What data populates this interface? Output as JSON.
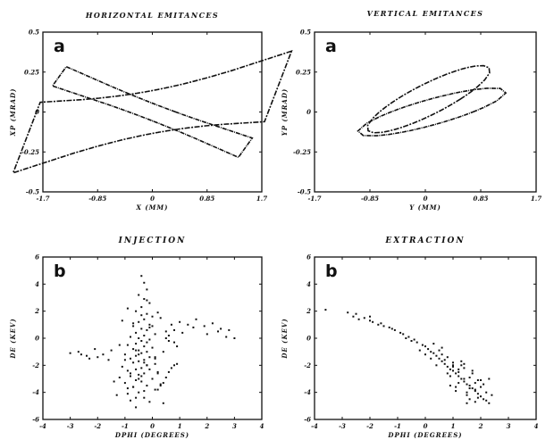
{
  "chart_data": [
    {
      "type": "line",
      "title": "HORIZONTAL EMITANCES",
      "panel_label": "a",
      "xlabel": "X (MM)",
      "ylabel": "XP (MRAD)",
      "xlim": [
        -1.7,
        1.7
      ],
      "ylim": [
        -0.5,
        0.5
      ],
      "xticks": [
        "-1.7",
        "-0.85",
        "0",
        "0.85",
        "1.7"
      ],
      "yticks": [
        "0.5",
        "0.25",
        "0",
        "-0.25",
        "-0.5"
      ],
      "grid": false,
      "series": [
        {
          "kind": "ellipse",
          "center": [
            0.0,
            0.0
          ],
          "points": [
            [
              -1.4,
              -0.28
            ],
            [
              1.4,
              0.28
            ],
            [
              -0.75,
              0.09
            ],
            [
              0.75,
              -0.09
            ],
            [
              0.9,
              0.22
            ],
            [
              -0.9,
              -0.22
            ]
          ]
        },
        {
          "kind": "ellipse",
          "center": [
            0.0,
            0.0
          ],
          "points": [
            [
              -1.0,
              0.09
            ],
            [
              1.0,
              -0.09
            ],
            [
              -0.4,
              0.12
            ],
            [
              0.4,
              -0.12
            ],
            [
              0.5,
              -0.02
            ],
            [
              -0.5,
              0.02
            ]
          ]
        }
      ]
    },
    {
      "type": "line",
      "title": "VERTICAL EMITANCES",
      "panel_label": "a",
      "xlabel": "Y (MM)",
      "ylabel": "YP (MRAD)",
      "xlim": [
        -1.7,
        1.7
      ],
      "ylim": [
        -0.5,
        0.5
      ],
      "xticks": [
        "-1.7",
        "-0.85",
        "0",
        "0.85",
        "1.7"
      ],
      "yticks": [
        "0.5",
        "0.25",
        "0",
        "-0.25",
        "-0.5"
      ],
      "grid": false,
      "series": [
        {
          "kind": "ellipse",
          "center": [
            0.05,
            0.08
          ],
          "points": [
            [
              -0.72,
              -0.13
            ],
            [
              0.82,
              0.29
            ],
            [
              0.95,
              0.22
            ],
            [
              -0.85,
              -0.06
            ],
            [
              0.35,
              0.24
            ],
            [
              -0.25,
              -0.08
            ]
          ]
        },
        {
          "kind": "ellipse",
          "center": [
            0.1,
            0.0
          ],
          "points": [
            [
              -1.0,
              -0.1
            ],
            [
              1.2,
              0.1
            ],
            [
              -0.55,
              -0.14
            ],
            [
              0.75,
              0.14
            ],
            [
              0.85,
              0.02
            ],
            [
              -0.65,
              -0.02
            ]
          ]
        }
      ]
    },
    {
      "type": "scatter",
      "title": "INJECTION",
      "panel_label": "b",
      "xlabel": "DPHI (DEGREES)",
      "ylabel": "DE (KEV)",
      "xlim": [
        -4,
        4
      ],
      "ylim": [
        -6,
        6
      ],
      "xticks": [
        "-4",
        "-3",
        "-2",
        "-1",
        "0",
        "1",
        "2",
        "3",
        "4"
      ],
      "yticks": [
        "6",
        "4",
        "2",
        "0",
        "-2",
        "-4",
        "-6"
      ],
      "grid": false,
      "x": [
        -0.4,
        -0.3,
        -0.2,
        -0.5,
        -0.3,
        -0.1,
        -0.4,
        -0.6,
        -0.2,
        0.0,
        -0.3,
        -0.5,
        -0.1,
        -0.7,
        -0.4,
        -0.2,
        -0.6,
        0.1,
        -0.3,
        -0.8,
        -0.5,
        -0.1,
        -0.4,
        -0.2,
        -0.6,
        -0.9,
        -0.3,
        0.0,
        -0.7,
        -0.5,
        -0.2,
        -0.4,
        -1.0,
        -0.6,
        -0.1,
        -0.8,
        -0.3,
        -0.5,
        -0.7,
        0.1,
        -0.2,
        -1.1,
        -0.4,
        -0.6,
        -0.9,
        0.2,
        -0.3,
        -0.5,
        -0.8,
        -1.2,
        0.0,
        -0.6,
        -0.4,
        -1.0,
        0.3,
        -0.2,
        -0.7,
        -0.9,
        0.1,
        -0.5,
        -1.3,
        -0.3,
        -0.8,
        0.4,
        -0.6,
        -1.1,
        -0.1,
        -0.4,
        0.5,
        -0.9,
        -0.7,
        0.6,
        -0.2,
        -1.2,
        0.2,
        -0.5,
        0.8,
        -0.3,
        0.0,
        -0.8,
        0.3,
        -1.4,
        -0.6,
        0.7,
        -0.1,
        -1.0,
        0.5,
        -0.4,
        0.9,
        -0.7,
        0.1,
        -0.9,
        -0.2,
        0.6,
        -0.5,
        0.4,
        -0.3,
        0.8,
        -0.6,
        0.2,
        0.1,
        0.5,
        0.3,
        0.7,
        -0.1,
        0.9,
        0.4,
        0.6,
        0.2,
        0.8,
        1.0,
        1.3,
        1.6,
        1.9,
        2.2,
        2.5,
        2.8,
        3.0,
        1.1,
        1.5,
        2.0,
        2.4,
        2.7,
        -1.5,
        -1.8,
        -2.1,
        -2.4,
        -2.7,
        -3.0,
        -1.6,
        -2.0,
        -2.3,
        -2.6
      ],
      "y": [
        4.6,
        4.1,
        3.6,
        3.2,
        2.9,
        2.6,
        2.3,
        2.0,
        1.8,
        1.6,
        1.4,
        1.2,
        1.0,
        0.9,
        0.7,
        0.6,
        0.4,
        0.3,
        0.2,
        0.1,
        0.0,
        -0.1,
        -0.2,
        -0.3,
        -0.4,
        -0.5,
        -0.6,
        -0.7,
        -0.8,
        -0.9,
        -1.0,
        -1.1,
        -1.2,
        -1.3,
        -1.4,
        -1.5,
        -1.6,
        -1.7,
        -1.8,
        -1.9,
        -2.0,
        -2.1,
        -2.2,
        -2.3,
        -2.4,
        -2.5,
        -2.6,
        -2.7,
        -2.8,
        -2.9,
        -3.0,
        -3.1,
        -3.2,
        -3.3,
        -3.4,
        -3.5,
        -3.6,
        -3.7,
        -3.8,
        -4.0,
        -4.2,
        -4.4,
        -4.6,
        -4.8,
        -5.1,
        1.3,
        0.8,
        1.7,
        0.5,
        2.2,
        1.1,
        0.2,
        2.8,
        -0.5,
        1.9,
        -1.2,
        0.6,
        -1.8,
        0.9,
        -2.6,
        1.5,
        -3.2,
        -0.9,
        1.0,
        -2.3,
        -1.6,
        0.0,
        -2.8,
        -0.6,
        -3.6,
        -1.4,
        -4.1,
        -2.0,
        -0.2,
        -3.0,
        -1.0,
        -3.9,
        -0.3,
        -4.4,
        -2.6,
        -1.5,
        -2.9,
        -3.5,
        -2.2,
        -4.7,
        -1.9,
        -3.3,
        -2.5,
        -3.8,
        -2.0,
        1.2,
        1.0,
        1.4,
        0.9,
        1.1,
        0.7,
        0.6,
        0.0,
        0.4,
        0.8,
        0.3,
        0.5,
        0.1,
        -0.9,
        -1.2,
        -0.8,
        -1.3,
        -1.0,
        -1.1,
        -1.6,
        -1.4,
        -1.5,
        -1.2
      ]
    },
    {
      "type": "scatter",
      "title": "EXTRACTION",
      "panel_label": "b",
      "xlabel": "DPHI (DEGREES)",
      "ylabel": "DE (KEV)",
      "xlim": [
        -4,
        4
      ],
      "ylim": [
        -6,
        6
      ],
      "xticks": [
        "-4",
        "-3",
        "-2",
        "-1",
        "0",
        "1",
        "2",
        "3",
        "4"
      ],
      "yticks": [
        "6",
        "4",
        "2",
        "0",
        "-2",
        "-4",
        "-6"
      ],
      "grid": false,
      "x": [
        -3.6,
        -2.8,
        -2.6,
        -2.4,
        -2.2,
        -2.0,
        -1.9,
        -1.7,
        -1.5,
        -1.3,
        -1.1,
        -0.9,
        -0.8,
        -0.6,
        -0.4,
        -0.3,
        -0.1,
        0.0,
        0.1,
        0.2,
        0.3,
        0.4,
        0.5,
        0.6,
        0.7,
        0.8,
        0.9,
        1.0,
        1.1,
        1.2,
        1.3,
        1.4,
        1.5,
        1.6,
        1.7,
        1.8,
        1.9,
        2.0,
        2.1,
        2.2,
        2.3,
        2.4,
        0.2,
        0.4,
        0.6,
        0.8,
        1.0,
        1.2,
        1.4,
        1.6,
        1.8,
        2.0,
        0.5,
        0.7,
        0.9,
        1.1,
        1.3,
        1.5,
        1.7,
        1.9,
        0.3,
        0.6,
        0.8,
        1.0,
        1.2,
        1.4,
        1.6,
        1.8,
        2.0,
        2.2,
        1.1,
        1.3,
        1.5,
        1.7,
        1.9,
        0.9,
        1.2,
        1.6,
        2.1,
        1.4,
        1.8,
        2.3,
        -2.5,
        -2.0,
        -1.6,
        -1.2,
        -0.7,
        -0.5,
        -0.2,
        0.0,
        1.0,
        1.5
      ],
      "y": [
        2.1,
        1.9,
        1.6,
        1.4,
        1.5,
        1.3,
        1.2,
        1.0,
        0.9,
        0.8,
        0.6,
        0.4,
        0.3,
        0.1,
        -0.1,
        -0.3,
        -0.5,
        -0.6,
        -0.8,
        -1.0,
        -1.1,
        -1.3,
        -1.5,
        -1.7,
        -1.9,
        -2.1,
        -2.3,
        -2.4,
        -2.6,
        -2.8,
        -3.0,
        -3.2,
        -3.4,
        -3.5,
        -3.7,
        -3.9,
        -4.1,
        -4.3,
        -4.5,
        -4.6,
        -4.8,
        -4.2,
        -1.5,
        -2.0,
        -1.2,
        -2.6,
        -1.8,
        -3.3,
        -2.2,
        -2.9,
        -3.8,
        -3.1,
        -0.9,
        -1.6,
        -2.8,
        -3.6,
        -2.0,
        -4.0,
        -2.6,
        -4.4,
        -0.4,
        -0.7,
        -1.4,
        -2.1,
        -2.5,
        -3.0,
        -3.7,
        -3.3,
        -3.6,
        -4.0,
        -3.9,
        -1.7,
        -4.2,
        -2.4,
        -3.1,
        -3.5,
        -2.3,
        -4.5,
        -3.4,
        -1.9,
        -4.7,
        -3.0,
        1.8,
        1.6,
        1.1,
        0.7,
        0.0,
        -0.2,
        -0.9,
        -1.2,
        -2.0,
        -4.8
      ]
    }
  ]
}
